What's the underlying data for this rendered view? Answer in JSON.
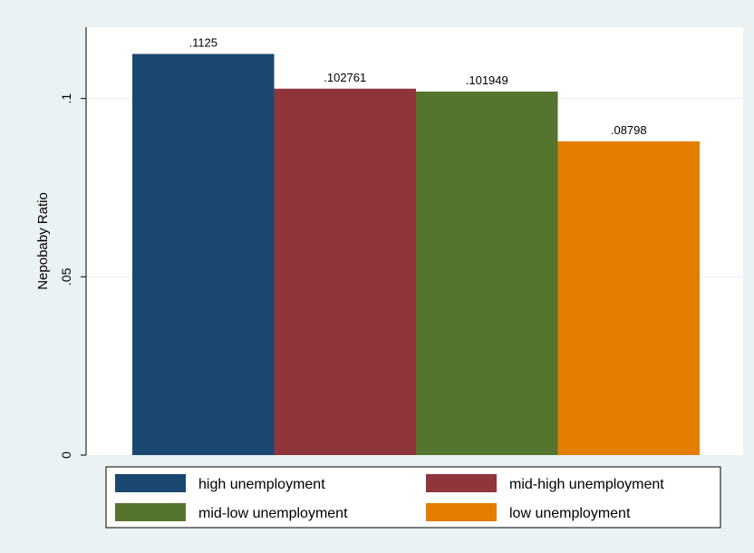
{
  "chart_data": {
    "type": "bar",
    "title": "",
    "xlabel": "",
    "ylabel": "Nepobaby Ratio",
    "ylim": [
      0,
      0.12
    ],
    "yticks": [
      0,
      0.05,
      0.1
    ],
    "ytick_labels": [
      "0",
      ".05",
      ".1"
    ],
    "grid": true,
    "legend_position": "bottom",
    "series": [
      {
        "name": "high unemployment",
        "value": 0.1125,
        "label": ".1125",
        "color": "#1a476f"
      },
      {
        "name": "mid-high unemployment",
        "value": 0.102761,
        "label": ".102761",
        "color": "#90353b"
      },
      {
        "name": "mid-low unemployment",
        "value": 0.101949,
        "label": ".101949",
        "color": "#55752f"
      },
      {
        "name": "low unemployment",
        "value": 0.08798,
        "label": ".08798",
        "color": "#e37e00"
      }
    ]
  }
}
